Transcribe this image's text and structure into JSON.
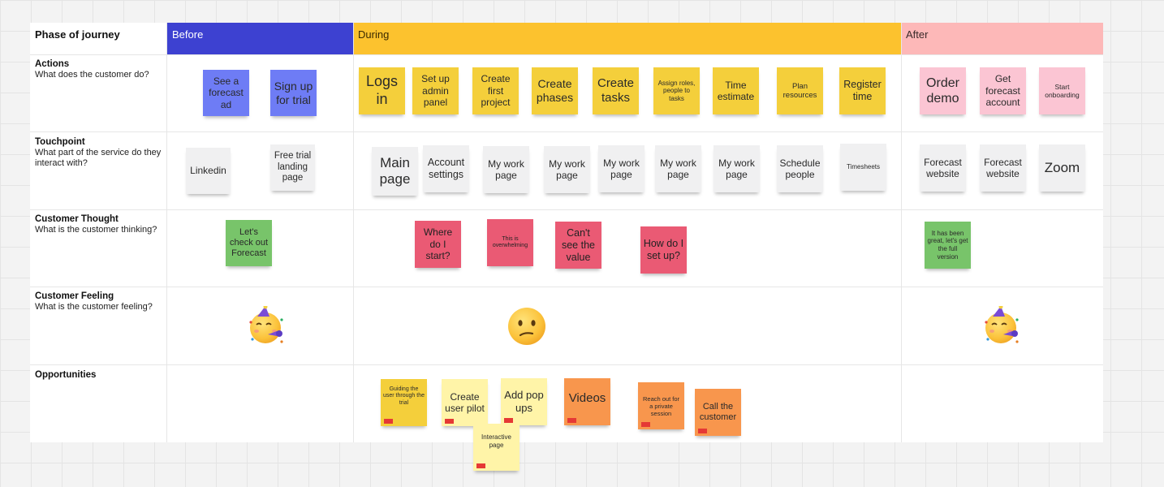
{
  "header": {
    "phase_label": "Phase of journey",
    "before": "Before",
    "during": "During",
    "after": "After"
  },
  "rows": {
    "actions": {
      "title": "Actions",
      "desc": "What does the customer do?"
    },
    "touchpoint": {
      "title": "Touchpoint",
      "desc": "What part of the service do they interact with?"
    },
    "thought": {
      "title": "Customer Thought",
      "desc": "What is the customer thinking?"
    },
    "feeling": {
      "title": "Customer Feeling",
      "desc": "What is the customer feeling?"
    },
    "opportunities": {
      "title": "Opportunities",
      "desc": ""
    }
  },
  "notes": {
    "actions": [
      "See a forecast ad",
      "Sign up for trial",
      "Logs in",
      "Set up admin panel",
      "Create first project",
      "Create phases",
      "Create tasks",
      "Assign roles, people to tasks",
      "Time estimate",
      "Plan resources",
      "Register time",
      "Order demo",
      "Get forecast account",
      "Start onboarding"
    ],
    "touchpoints": [
      "Linkedin",
      "Free trial landing page",
      "Main page",
      "Account settings",
      "My work page",
      "My work page",
      "My work page",
      "My work page",
      "My work page",
      "Schedule people",
      "Timesheets",
      "Forecast website",
      "Forecast website",
      "Zoom"
    ],
    "thoughts": [
      "Let's check out Forecast",
      "Where do I start?",
      "This is overwhelming",
      "Can't see the value",
      "How do I set up?",
      "It has been great, let's get the full version"
    ],
    "opportunities": [
      "Guiding the user through the trial",
      "Create user pilot",
      "Add pop ups",
      "Videos",
      "Reach out for a private session",
      "Call the customer",
      "Interactive page"
    ]
  },
  "feelings": {
    "before": "partying-face-emoji",
    "during": "confused-face-emoji",
    "after": "partying-face-emoji"
  },
  "colors": {
    "before_header": "#3d41d1",
    "during_header": "#fcc22e",
    "after_header": "#fdb8b8",
    "blue_note": "#6e7cf5",
    "yellow_note": "#f4cf3b",
    "pink_note": "#fbc5d3",
    "gray_note": "#f0f0f1",
    "green_note": "#78c46a",
    "red_note": "#ea5a74",
    "lightyellow_note": "#fff4a8",
    "orange_note": "#f8964d"
  }
}
